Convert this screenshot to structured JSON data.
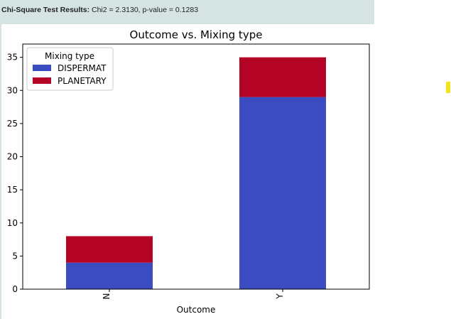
{
  "header": {
    "label": "Chi-Square Test Results:",
    "text": "Chi2 = 2.3130, p-value = 0.1283"
  },
  "chart_data": {
    "type": "bar",
    "stacked": true,
    "title": "Outcome vs. Mixing type",
    "xlabel": "Outcome",
    "ylabel": "",
    "categories": [
      "N",
      "Y"
    ],
    "series": [
      {
        "name": "DISPERMAT",
        "values": [
          4,
          29
        ],
        "color": "#3a4cc0"
      },
      {
        "name": "PLANETARY",
        "values": [
          4,
          6
        ],
        "color": "#b40426"
      }
    ],
    "ylim": [
      0,
      37
    ],
    "yticks": [
      0,
      5,
      10,
      15,
      20,
      25,
      30,
      35
    ],
    "grid": false,
    "legend": {
      "title": "Mixing type",
      "placement": "top-left"
    }
  }
}
